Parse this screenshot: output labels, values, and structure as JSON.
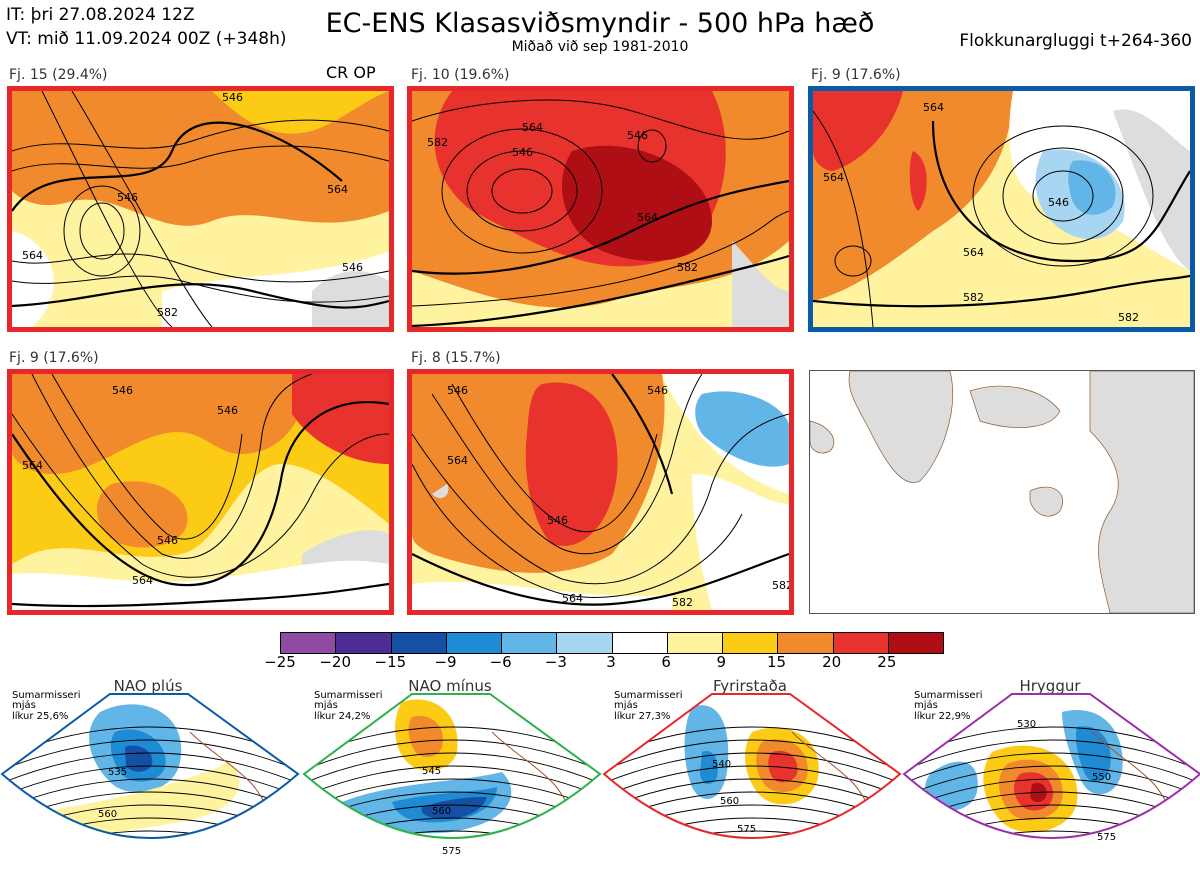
{
  "header": {
    "it": "IT: þri 27.08.2024 12Z",
    "vt": "VT: mið 11.09.2024 00Z  (+348h)",
    "title": "EC-ENS Klasasviðsmyndir - 500 hPa hæð",
    "subtitle": "Miðað við sep 1981-2010",
    "window": "Flokkunargluggi t+264-360"
  },
  "panels": [
    {
      "label": "Fj. 15 (29.4%)",
      "tag": "CR OP",
      "border": "#e8272a",
      "contours": [
        "546",
        "564",
        "582",
        "564",
        "546",
        "546"
      ]
    },
    {
      "label": "Fj. 10 (19.6%)",
      "tag": "",
      "border": "#e8272a",
      "contours": [
        "564",
        "582",
        "546",
        "546",
        "564",
        "582"
      ]
    },
    {
      "label": "Fj. 9 (17.6%)",
      "tag": "",
      "border": "#0b5aa8",
      "contours": [
        "564",
        "564",
        "546",
        "564",
        "582",
        "582"
      ]
    },
    {
      "label": "Fj. 9 (17.6%)",
      "tag": "",
      "border": "#e8272a",
      "contours": [
        "546",
        "564",
        "546",
        "564",
        "546"
      ]
    },
    {
      "label": "Fj. 8 (15.7%)",
      "tag": "",
      "border": "#e8272a",
      "contours": [
        "546",
        "564",
        "546",
        "546",
        "564",
        "582",
        "582"
      ]
    }
  ],
  "colorbar": {
    "ticks": [
      "−25",
      "−20",
      "−15",
      "−9",
      "−6",
      "−3",
      "3",
      "6",
      "9",
      "15",
      "20",
      "25"
    ],
    "colors": [
      "#8f4ba4",
      "#4c2e95",
      "#1550a4",
      "#1e8bd4",
      "#62b5e7",
      "#a7d5f2",
      "#ffffff",
      "#fff3a0",
      "#fccb16",
      "#f18a2d",
      "#e8322e",
      "#b00e15"
    ]
  },
  "regimes": [
    {
      "name": "NAO plús",
      "color": "#0b5aa8",
      "season": "Sumarmisseri",
      "subset": "mjás",
      "likelihood": "líkur 25,6%",
      "contours": [
        "535",
        "560"
      ]
    },
    {
      "name": "NAO mínus",
      "color": "#2db14b",
      "season": "Sumarmisseri",
      "subset": "mjás",
      "likelihood": "líkur 24,2%",
      "contours": [
        "545",
        "560",
        "575"
      ]
    },
    {
      "name": "Fyrirstaða",
      "color": "#e8272a",
      "season": "Sumarmisseri",
      "subset": "mjás",
      "likelihood": "líkur 27,3%",
      "contours": [
        "540",
        "560",
        "575"
      ]
    },
    {
      "name": "Hryggur",
      "color": "#d67fe8",
      "border": "#9b2fa8",
      "season": "Sumarmisseri",
      "subset": "mjás",
      "likelihood": "líkur 22,9%",
      "contours": [
        "530",
        "550",
        "575"
      ]
    }
  ]
}
